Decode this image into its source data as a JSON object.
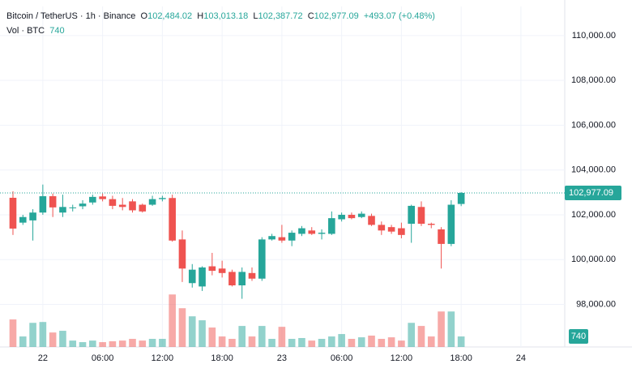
{
  "header": {
    "symbol": "Bitcoin / TetherUS · 1h · Binance",
    "o": "O",
    "open": "102,484.02",
    "h": "H",
    "high": "103,013.18",
    "l": "L",
    "low": "102,387.72",
    "c": "C",
    "close": "102,977.09",
    "change": "+493.07 (+0.48%)",
    "vol": "Vol · BTC",
    "vol_value": "740"
  },
  "chart_data": {
    "type": "candlestick",
    "open": [
      102760,
      101650,
      101750,
      102100,
      102830,
      102100,
      102300,
      102380,
      102550,
      102820,
      102700,
      102450,
      102600,
      102450,
      102450,
      102700,
      102750,
      100900,
      98950,
      98800,
      99700,
      99600,
      99450,
      98850,
      99400,
      99150,
      100900,
      101000,
      100850,
      101150,
      101300,
      101150,
      101150,
      101800,
      102000,
      101900,
      101950,
      101550,
      101450,
      101400,
      101600,
      102350,
      101600,
      101350,
      100700,
      102484.02
    ],
    "high": [
      103050,
      102000,
      102250,
      103350,
      102950,
      102900,
      102450,
      102650,
      102900,
      102950,
      102850,
      102750,
      102700,
      102500,
      102850,
      102850,
      102900,
      101300,
      99800,
      99700,
      100300,
      99950,
      99550,
      99650,
      99650,
      101000,
      101150,
      101550,
      101300,
      101500,
      101450,
      101350,
      102150,
      102100,
      102100,
      102150,
      102050,
      101700,
      101550,
      101650,
      102450,
      102600,
      101650,
      101450,
      102650,
      103013.18
    ],
    "low": [
      101100,
      101550,
      100850,
      102000,
      101900,
      101900,
      102150,
      102250,
      102450,
      102600,
      102250,
      102200,
      102100,
      102100,
      102400,
      102600,
      100800,
      99000,
      98750,
      98600,
      99300,
      99200,
      98800,
      98250,
      99050,
      99050,
      100850,
      100750,
      100600,
      101050,
      101100,
      100900,
      101100,
      101700,
      101800,
      101850,
      101500,
      101100,
      101150,
      100950,
      100750,
      101500,
      101400,
      99600,
      100600,
      102387.72
    ],
    "close": [
      101385,
      101900,
      102100,
      102830,
      102330,
      102350,
      102330,
      102500,
      102800,
      102700,
      102400,
      102350,
      102200,
      102150,
      102700,
      102750,
      100850,
      99600,
      99550,
      99650,
      99500,
      99400,
      98850,
      99450,
      99150,
      100900,
      101050,
      100850,
      101200,
      101400,
      101150,
      101200,
      101850,
      102000,
      101850,
      102050,
      101550,
      101300,
      101250,
      101100,
      102400,
      101600,
      101550,
      100700,
      102450,
      102977.09
    ],
    "volume": [
      1940,
      740,
      1700,
      1760,
      1020,
      1140,
      450,
      340,
      450,
      340,
      400,
      450,
      570,
      450,
      570,
      570,
      3700,
      2730,
      2160,
      1880,
      1370,
      740,
      570,
      1480,
      740,
      1480,
      570,
      1420,
      570,
      630,
      450,
      570,
      740,
      910,
      570,
      680,
      800,
      570,
      680,
      450,
      1700,
      1480,
      740,
      2500,
      2500,
      740
    ],
    "up_color": "#26a69a",
    "down_color": "#ef5350",
    "ylim": [
      96100,
      111300
    ],
    "yticks": [
      {
        "value": 98000,
        "label": "98,000.00"
      },
      {
        "value": 100000,
        "label": "100,000.00"
      },
      {
        "value": 102000,
        "label": "102,000.00"
      },
      {
        "value": 104000,
        "label": "104,000.00"
      },
      {
        "value": 106000,
        "label": "106,000.00"
      },
      {
        "value": 108000,
        "label": "108,000.00"
      },
      {
        "value": 110000,
        "label": "110,000.00"
      }
    ],
    "y2lim": [
      0,
      8000
    ],
    "xlim": [
      -1.3,
      55.4
    ],
    "xticks": [
      {
        "value": 3,
        "label": "22"
      },
      {
        "value": 9,
        "label": "06:00"
      },
      {
        "value": 15,
        "label": "12:00"
      },
      {
        "value": 21,
        "label": "18:00"
      },
      {
        "value": 27,
        "label": "23"
      },
      {
        "value": 33,
        "label": "06:00"
      },
      {
        "value": 39,
        "label": "12:00"
      },
      {
        "value": 45,
        "label": "18:00"
      },
      {
        "value": 51,
        "label": "24"
      }
    ],
    "last_price": {
      "value": 102977.09,
      "label": "102,977.09"
    },
    "last_volume": 740,
    "grid": true
  }
}
